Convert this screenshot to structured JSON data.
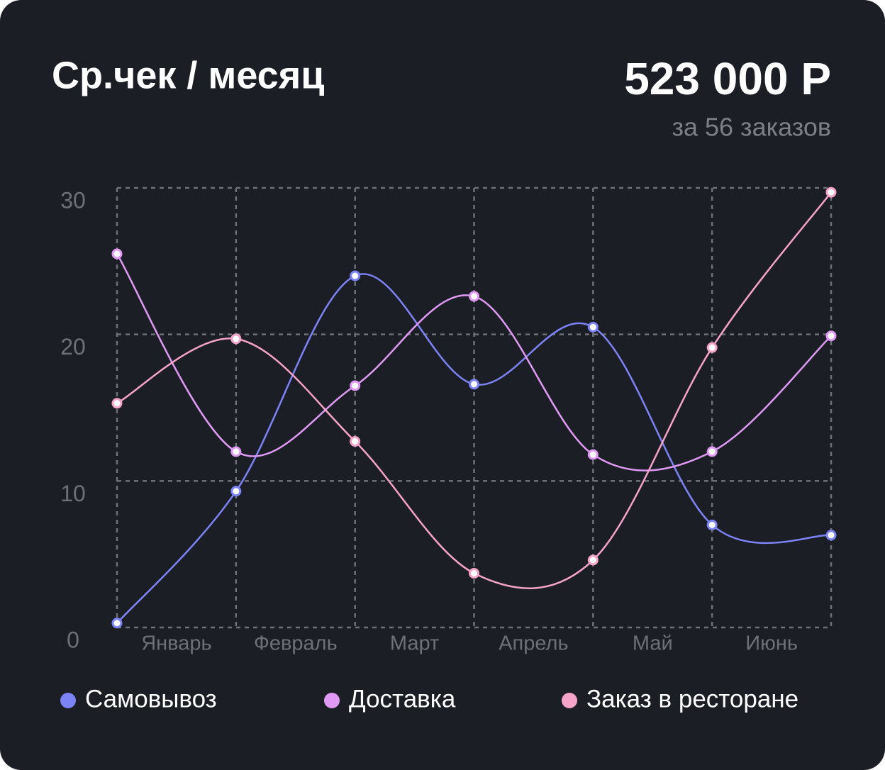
{
  "chart_data": {
    "type": "line",
    "title": "Ср.чек / месяц",
    "summary": "523 000 Р",
    "subtitle": "за 56 заказов",
    "x": [
      0,
      1,
      2,
      3,
      4,
      5,
      6
    ],
    "xlim": [
      0,
      6
    ],
    "categories": [
      "Январь",
      "Февраль",
      "Март",
      "Апрель",
      "Май",
      "Июнь"
    ],
    "ylim": [
      0,
      30
    ],
    "yticks": [
      0,
      10,
      20,
      30
    ],
    "grid": true,
    "smooth": true,
    "legend": "bottom",
    "series": [
      {
        "name": "Самовывоз",
        "color": "#7b83f5",
        "values": [
          0.3,
          9.3,
          24,
          16.6,
          20.5,
          7,
          6.3
        ]
      },
      {
        "name": "Доставка",
        "color": "#e09af5",
        "values": [
          25.5,
          12,
          16.5,
          22.6,
          11.8,
          12,
          19.9
        ]
      },
      {
        "name": "Заказ в ресторане",
        "color": "#f5a3c8",
        "values": [
          15.3,
          19.7,
          12.7,
          3.7,
          4.6,
          19.1,
          29.7
        ]
      }
    ]
  }
}
